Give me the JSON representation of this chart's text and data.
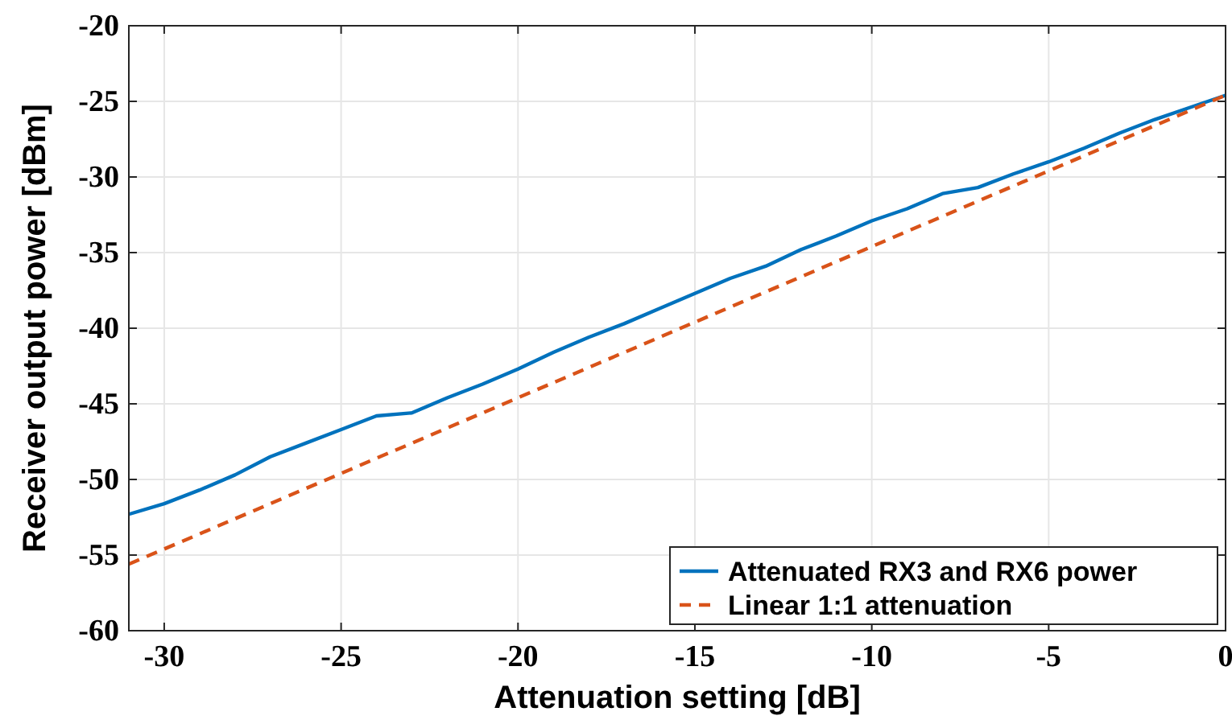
{
  "chart_data": {
    "type": "line",
    "xlabel": "Attenuation setting [dB]",
    "ylabel": "Receiver output power [dBm]",
    "xlim": [
      -31,
      0
    ],
    "xticks": [
      -30,
      -25,
      -20,
      -15,
      -10,
      -5,
      0
    ],
    "ylim": [
      -60,
      -20
    ],
    "yticks": [
      -60,
      -55,
      -50,
      -45,
      -40,
      -35,
      -30,
      -25,
      -20
    ],
    "grid": true,
    "legend": "bottom right",
    "series": [
      {
        "name": "Attenuated RX3 and RX6 power",
        "color": "#0072bd",
        "line_style": "solid",
        "x": [
          -31,
          -30,
          -29,
          -28,
          -27,
          -26,
          -25,
          -24,
          -23,
          -22,
          -21,
          -20,
          -19,
          -18,
          -17,
          -16,
          -15,
          -14,
          -13,
          -12,
          -11,
          -10,
          -9,
          -8,
          -7,
          -6,
          -5,
          -4,
          -3,
          -2,
          -1,
          0
        ],
        "values": [
          -52.3,
          -51.6,
          -50.7,
          -49.7,
          -48.5,
          -47.6,
          -46.7,
          -45.8,
          -45.6,
          -44.6,
          -43.7,
          -42.7,
          -41.6,
          -40.6,
          -39.7,
          -38.7,
          -37.7,
          -36.7,
          -35.9,
          -34.8,
          -33.9,
          -32.9,
          -32.1,
          -31.1,
          -30.7,
          -29.8,
          -29.0,
          -28.1,
          -27.1,
          -26.2,
          -25.4,
          -24.6
        ]
      },
      {
        "name": "Linear 1:1 attenuation",
        "color": "#d95319",
        "line_style": "dashed",
        "x": [
          -31,
          0
        ],
        "values": [
          -55.6,
          -24.6
        ]
      }
    ]
  }
}
